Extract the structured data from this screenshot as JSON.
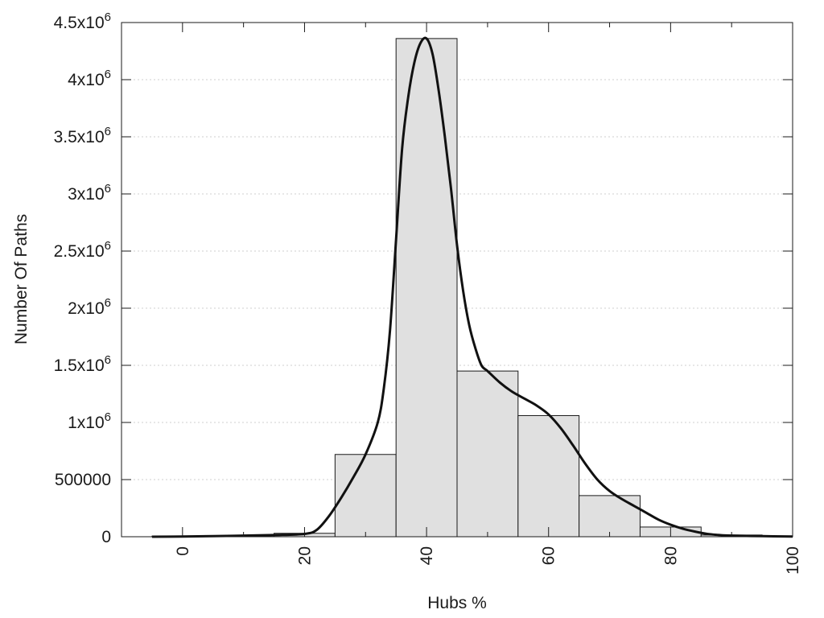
{
  "chart_data": {
    "type": "bar",
    "title": "",
    "xlabel": "Hubs %",
    "ylabel": "Number Of Paths",
    "xlim": [
      -10,
      100
    ],
    "ylim": [
      0,
      4500000
    ],
    "grid": "horizontal dotted",
    "legend": "none",
    "bars": [
      {
        "x_start": -5,
        "x_end": 5,
        "value": 5000
      },
      {
        "x_start": 5,
        "x_end": 15,
        "value": 10000
      },
      {
        "x_start": 15,
        "x_end": 25,
        "value": 30000
      },
      {
        "x_start": 25,
        "x_end": 35,
        "value": 720000
      },
      {
        "x_start": 35,
        "x_end": 45,
        "value": 4360000
      },
      {
        "x_start": 45,
        "x_end": 55,
        "value": 1450000
      },
      {
        "x_start": 55,
        "x_end": 65,
        "value": 1060000
      },
      {
        "x_start": 65,
        "x_end": 75,
        "value": 360000
      },
      {
        "x_start": 75,
        "x_end": 85,
        "value": 85000
      },
      {
        "x_start": 85,
        "x_end": 95,
        "value": 15000
      }
    ],
    "x_ticks": [
      {
        "value": 0,
        "label": "0"
      },
      {
        "value": 20,
        "label": "20"
      },
      {
        "value": 40,
        "label": "40"
      },
      {
        "value": 60,
        "label": "60"
      },
      {
        "value": 80,
        "label": "80"
      },
      {
        "value": 100,
        "label": "100"
      }
    ],
    "x_minor_ticks": [
      10,
      30,
      50,
      70,
      90
    ],
    "y_ticks": [
      {
        "value": 0,
        "base": "0",
        "exp": ""
      },
      {
        "value": 500000,
        "base": "500000",
        "exp": ""
      },
      {
        "value": 1000000,
        "base": "1x10",
        "exp": "6"
      },
      {
        "value": 1500000,
        "base": "1.5x10",
        "exp": "6"
      },
      {
        "value": 2000000,
        "base": "2x10",
        "exp": "6"
      },
      {
        "value": 2500000,
        "base": "2.5x10",
        "exp": "6"
      },
      {
        "value": 3000000,
        "base": "3x10",
        "exp": "6"
      },
      {
        "value": 3500000,
        "base": "3.5x10",
        "exp": "6"
      },
      {
        "value": 4000000,
        "base": "4x10",
        "exp": "6"
      },
      {
        "value": 4500000,
        "base": "4.5x10",
        "exp": "6"
      }
    ],
    "curve": {
      "x": [
        -5,
        0,
        5,
        10,
        15,
        20,
        22,
        24,
        26,
        28,
        30,
        32,
        33,
        34,
        35,
        36,
        37,
        38,
        39,
        40,
        41,
        42,
        43,
        44,
        45,
        46,
        47,
        48,
        49,
        50,
        52,
        54,
        56,
        58,
        60,
        62,
        64,
        66,
        68,
        70,
        72,
        74,
        76,
        78,
        80,
        82,
        84,
        86,
        88,
        90,
        95,
        100
      ],
      "y": [
        0,
        2000,
        5000,
        10000,
        15000,
        25000,
        60000,
        180000,
        340000,
        520000,
        720000,
        1000000,
        1300000,
        1800000,
        2600000,
        3400000,
        3850000,
        4150000,
        4320000,
        4360000,
        4220000,
        3900000,
        3500000,
        3050000,
        2550000,
        2150000,
        1850000,
        1650000,
        1500000,
        1450000,
        1350000,
        1270000,
        1210000,
        1150000,
        1070000,
        950000,
        800000,
        640000,
        500000,
        400000,
        330000,
        270000,
        210000,
        150000,
        105000,
        70000,
        45000,
        25000,
        15000,
        10000,
        5000,
        2000
      ]
    }
  }
}
